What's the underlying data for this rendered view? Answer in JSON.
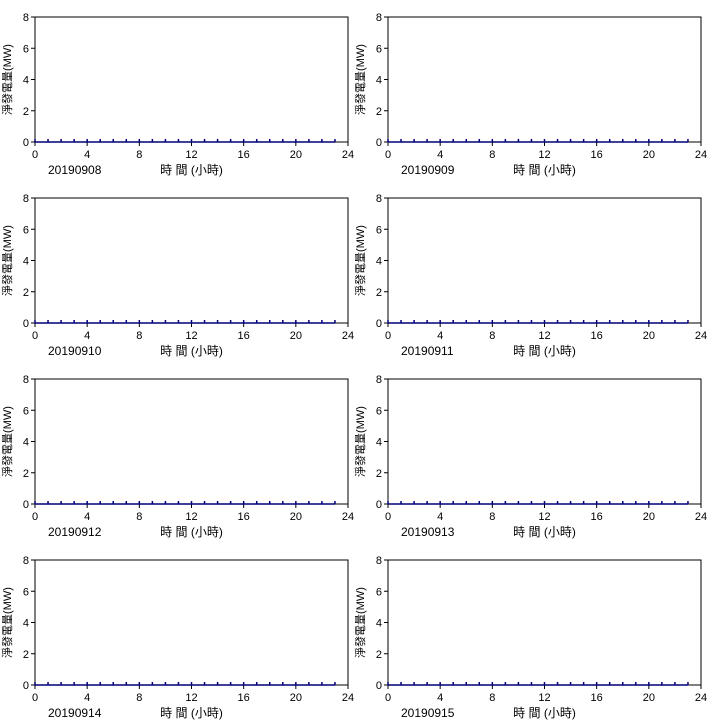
{
  "chart_data": [
    {
      "type": "line",
      "date_label": "20190908",
      "xlabel": "時 間 (小時)",
      "ylabel": "淨發電量(MW)",
      "xlim": [
        0,
        24
      ],
      "ylim": [
        0,
        8
      ],
      "x_ticks": [
        0,
        4,
        8,
        12,
        16,
        20,
        24
      ],
      "y_ticks": [
        0,
        2,
        4,
        6,
        8
      ],
      "x": [
        0,
        1,
        2,
        3,
        4,
        5,
        6,
        7,
        8,
        9,
        10,
        11,
        12,
        13,
        14,
        15,
        16,
        17,
        18,
        19,
        20,
        21,
        22,
        23
      ],
      "values": [
        0,
        0,
        0,
        0,
        0,
        0,
        0,
        0,
        0,
        0,
        0,
        0,
        0,
        0,
        0,
        0,
        0,
        0,
        0,
        0,
        0,
        0,
        0,
        0
      ],
      "grid": false
    },
    {
      "type": "line",
      "date_label": "20190909",
      "xlabel": "時 間 (小時)",
      "ylabel": "淨發電量(MW)",
      "xlim": [
        0,
        24
      ],
      "ylim": [
        0,
        8
      ],
      "x_ticks": [
        0,
        4,
        8,
        12,
        16,
        20,
        24
      ],
      "y_ticks": [
        0,
        2,
        4,
        6,
        8
      ],
      "x": [
        0,
        1,
        2,
        3,
        4,
        5,
        6,
        7,
        8,
        9,
        10,
        11,
        12,
        13,
        14,
        15,
        16,
        17,
        18,
        19,
        20,
        21,
        22,
        23
      ],
      "values": [
        0,
        0,
        0,
        0,
        0,
        0,
        0,
        0,
        0,
        0,
        0,
        0,
        0,
        0,
        0,
        0,
        0,
        0,
        0,
        0,
        0,
        0,
        0,
        0
      ],
      "grid": false
    },
    {
      "type": "line",
      "date_label": "20190910",
      "xlabel": "時 間 (小時)",
      "ylabel": "淨發電量(MW)",
      "xlim": [
        0,
        24
      ],
      "ylim": [
        0,
        8
      ],
      "x_ticks": [
        0,
        4,
        8,
        12,
        16,
        20,
        24
      ],
      "y_ticks": [
        0,
        2,
        4,
        6,
        8
      ],
      "x": [
        0,
        1,
        2,
        3,
        4,
        5,
        6,
        7,
        8,
        9,
        10,
        11,
        12,
        13,
        14,
        15,
        16,
        17,
        18,
        19,
        20,
        21,
        22,
        23
      ],
      "values": [
        0,
        0,
        0,
        0,
        0,
        0,
        0,
        0,
        0,
        0,
        0,
        0,
        0,
        0,
        0,
        0,
        0,
        0,
        0,
        0,
        0,
        0,
        0,
        0
      ],
      "grid": false
    },
    {
      "type": "line",
      "date_label": "20190911",
      "xlabel": "時 間 (小時)",
      "ylabel": "淨發電量(MW)",
      "xlim": [
        0,
        24
      ],
      "ylim": [
        0,
        8
      ],
      "x_ticks": [
        0,
        4,
        8,
        12,
        16,
        20,
        24
      ],
      "y_ticks": [
        0,
        2,
        4,
        6,
        8
      ],
      "x": [
        0,
        1,
        2,
        3,
        4,
        5,
        6,
        7,
        8,
        9,
        10,
        11,
        12,
        13,
        14,
        15,
        16,
        17,
        18,
        19,
        20,
        21,
        22,
        23
      ],
      "values": [
        0,
        0,
        0,
        0,
        0,
        0,
        0,
        0,
        0,
        0,
        0,
        0,
        0,
        0,
        0,
        0,
        0,
        0,
        0,
        0,
        0,
        0,
        0,
        0
      ],
      "grid": false
    },
    {
      "type": "line",
      "date_label": "20190912",
      "xlabel": "時 間 (小時)",
      "ylabel": "淨發電量(MW)",
      "xlim": [
        0,
        24
      ],
      "ylim": [
        0,
        8
      ],
      "x_ticks": [
        0,
        4,
        8,
        12,
        16,
        20,
        24
      ],
      "y_ticks": [
        0,
        2,
        4,
        6,
        8
      ],
      "x": [
        0,
        1,
        2,
        3,
        4,
        5,
        6,
        7,
        8,
        9,
        10,
        11,
        12,
        13,
        14,
        15,
        16,
        17,
        18,
        19,
        20,
        21,
        22,
        23
      ],
      "values": [
        0,
        0,
        0,
        0,
        0,
        0,
        0,
        0,
        0,
        0,
        0,
        0,
        0,
        0,
        0,
        0,
        0,
        0,
        0,
        0,
        0,
        0,
        0,
        0
      ],
      "grid": false
    },
    {
      "type": "line",
      "date_label": "20190913",
      "xlabel": "時 間 (小時)",
      "ylabel": "淨發電量(MW)",
      "xlim": [
        0,
        24
      ],
      "ylim": [
        0,
        8
      ],
      "x_ticks": [
        0,
        4,
        8,
        12,
        16,
        20,
        24
      ],
      "y_ticks": [
        0,
        2,
        4,
        6,
        8
      ],
      "x": [
        0,
        1,
        2,
        3,
        4,
        5,
        6,
        7,
        8,
        9,
        10,
        11,
        12,
        13,
        14,
        15,
        16,
        17,
        18,
        19,
        20,
        21,
        22,
        23
      ],
      "values": [
        0,
        0,
        0,
        0,
        0,
        0,
        0,
        0,
        0,
        0,
        0,
        0,
        0,
        0,
        0,
        0,
        0,
        0,
        0,
        0,
        0,
        0,
        0,
        0
      ],
      "grid": false
    },
    {
      "type": "line",
      "date_label": "20190914",
      "xlabel": "時 間 (小時)",
      "ylabel": "淨發電量(MW)",
      "xlim": [
        0,
        24
      ],
      "ylim": [
        0,
        8
      ],
      "x_ticks": [
        0,
        4,
        8,
        12,
        16,
        20,
        24
      ],
      "y_ticks": [
        0,
        2,
        4,
        6,
        8
      ],
      "x": [
        0,
        1,
        2,
        3,
        4,
        5,
        6,
        7,
        8,
        9,
        10,
        11,
        12,
        13,
        14,
        15,
        16,
        17,
        18,
        19,
        20,
        21,
        22,
        23
      ],
      "values": [
        0,
        0,
        0,
        0,
        0,
        0,
        0,
        0,
        0,
        0,
        0,
        0,
        0,
        0,
        0,
        0,
        0,
        0,
        0,
        0,
        0,
        0,
        0,
        0
      ],
      "grid": false
    },
    {
      "type": "line",
      "date_label": "20190915",
      "xlabel": "時 間 (小時)",
      "ylabel": "淨發電量(MW)",
      "xlim": [
        0,
        24
      ],
      "ylim": [
        0,
        8
      ],
      "x_ticks": [
        0,
        4,
        8,
        12,
        16,
        20,
        24
      ],
      "y_ticks": [
        0,
        2,
        4,
        6,
        8
      ],
      "x": [
        0,
        1,
        2,
        3,
        4,
        5,
        6,
        7,
        8,
        9,
        10,
        11,
        12,
        13,
        14,
        15,
        16,
        17,
        18,
        19,
        20,
        21,
        22,
        23
      ],
      "values": [
        0,
        0,
        0,
        0,
        0,
        0,
        0,
        0,
        0,
        0,
        0,
        0,
        0,
        0,
        0,
        0,
        0,
        0,
        0,
        0,
        0,
        0,
        0,
        0
      ],
      "grid": false
    }
  ],
  "colors": {
    "series": "#00007a",
    "axis": "#000000",
    "frame": "#000000"
  }
}
